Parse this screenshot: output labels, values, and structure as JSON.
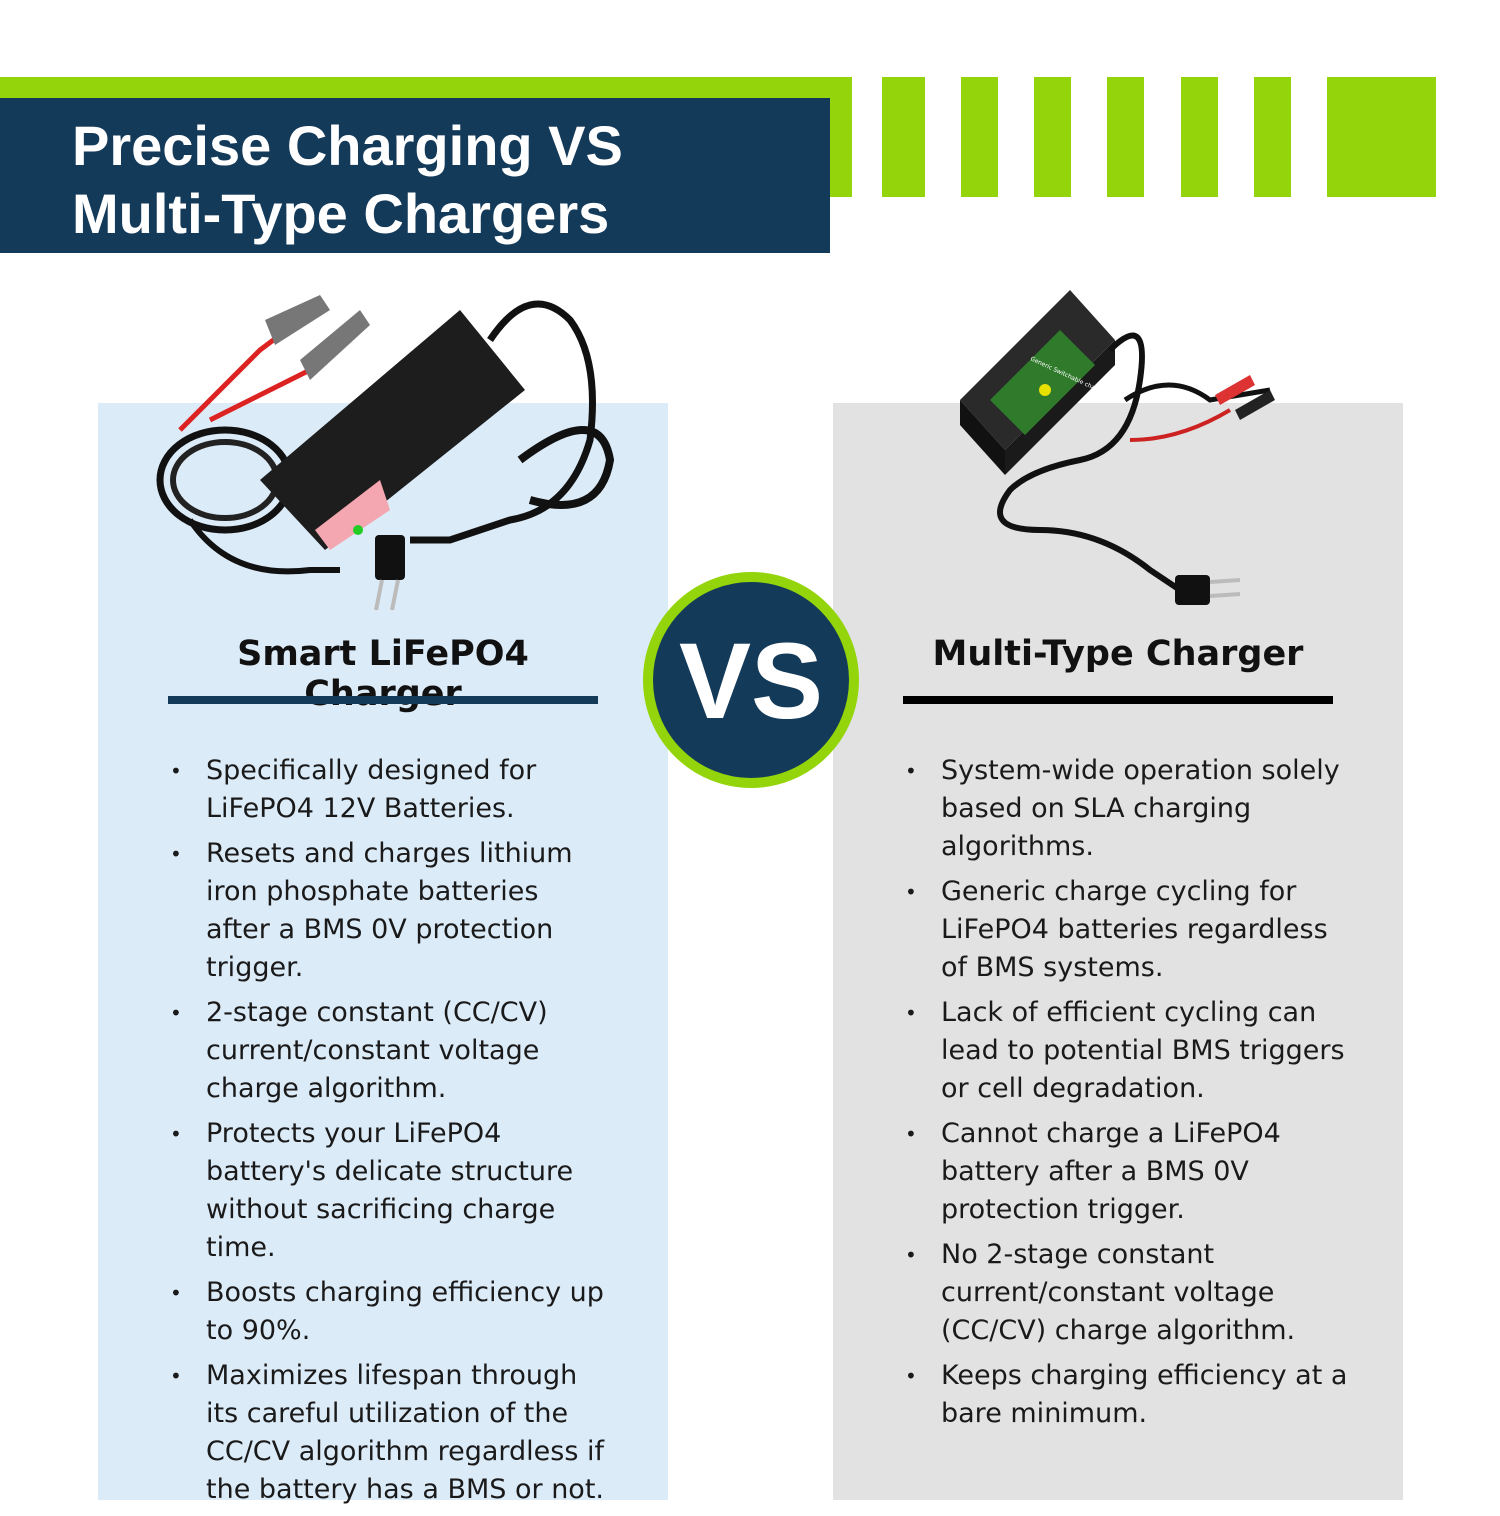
{
  "header": {
    "title_line1": "Precise Charging VS",
    "title_line2": "Multi-Type Chargers"
  },
  "colors": {
    "navy": "#143a5a",
    "green": "#93d50a",
    "left_panel": "#dcebf8",
    "right_panel": "#e2e2e2"
  },
  "vs_label": "VS",
  "left": {
    "heading": "Smart LiFePO4 Charger",
    "image": "smart-lifepo4-charger-photo",
    "items": [
      "Specifically designed for LiFePO4 12V Batteries.",
      "Resets and charges lithium iron phosphate batteries after a BMS 0V protection trigger.",
      "2-stage constant (CC/CV) current/constant voltage charge algorithm.",
      "Protects your LiFePO4 battery's delicate structure without sacrificing charge time.",
      "Boosts charging efficiency up to 90%.",
      "Maximizes lifespan through its careful utilization of the CC/CV algorithm regardless if the battery has a BMS or not."
    ]
  },
  "right": {
    "heading": "Multi-Type Charger",
    "image": "generic-multi-type-charger-photo",
    "device_label": "Generic Switchable charger",
    "items": [
      "System-wide operation solely based on SLA charging algorithms.",
      "Generic charge cycling for LiFePO4 batteries regardless of BMS systems.",
      "Lack of efficient cycling can lead to potential BMS triggers or cell degradation.",
      "Cannot charge a LiFePO4 battery after a BMS 0V protection trigger.",
      "No 2-stage constant current/constant voltage (CC/CV) charge algorithm.",
      "Keeps charging efficiency at a bare minimum."
    ]
  }
}
